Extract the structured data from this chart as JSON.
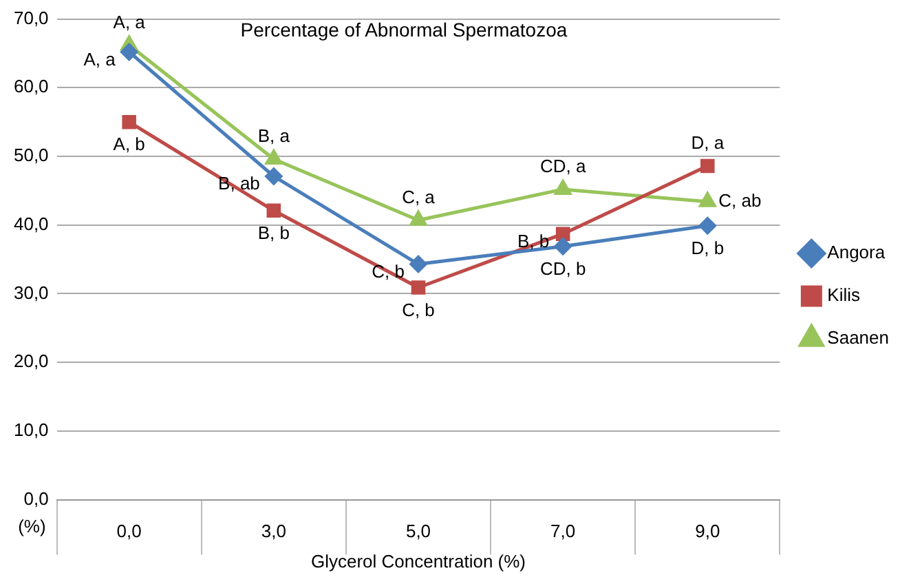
{
  "chart_data": {
    "type": "line",
    "title": "Percentage of Abnormal Spermatozoa",
    "xlabel": "Glycerol Concentration (%)",
    "ylabel": "(%)",
    "categories": [
      "0,0",
      "3,0",
      "5,0",
      "7,0",
      "9,0"
    ],
    "series": [
      {
        "name": "Angora",
        "color": "#4a7ebb",
        "marker": "diamond",
        "values": [
          65.2,
          47.1,
          34.3,
          36.9,
          39.9
        ]
      },
      {
        "name": "Kilis",
        "color": "#be4b48",
        "marker": "square",
        "values": [
          55.0,
          42.1,
          30.9,
          38.7,
          48.6
        ]
      },
      {
        "name": "Saanen",
        "color": "#98c45a",
        "marker": "triangle",
        "values": [
          66.2,
          49.6,
          40.7,
          45.2,
          43.4
        ]
      }
    ],
    "ylim": [
      0,
      70
    ],
    "yticks": [
      {
        "value": 0,
        "label": "0,0"
      },
      {
        "value": 10,
        "label": "10,0"
      },
      {
        "value": 20,
        "label": "20,0"
      },
      {
        "value": 30,
        "label": "30,0"
      },
      {
        "value": 40,
        "label": "40,0"
      },
      {
        "value": 50,
        "label": "50,0"
      },
      {
        "value": 60,
        "label": "60,0"
      },
      {
        "value": 70,
        "label": "70,0"
      }
    ],
    "grid": "y",
    "legend": "right",
    "line_style": "solid",
    "annotations": [
      {
        "text": "A, a",
        "x": "0,0",
        "y": 65.2
      },
      {
        "text": "B, ab",
        "x": "3,0",
        "y": 47.1
      },
      {
        "text": "C, b",
        "x": "5,0",
        "y": 34.3
      },
      {
        "text": "CD, b",
        "x": "7,0",
        "y": 36.9
      },
      {
        "text": "D, b",
        "x": "9,0",
        "y": 39.9
      },
      {
        "text": "A, b",
        "x": "0,0",
        "y": 55.0
      },
      {
        "text": "B, b",
        "x": "3,0",
        "y": 42.1
      },
      {
        "text": "C, b",
        "x": "5,0",
        "y": 30.9
      },
      {
        "text": "B, b",
        "x": "7,0",
        "y": 38.7
      },
      {
        "text": "D, a",
        "x": "9,0",
        "y": 48.6
      },
      {
        "text": "A, a",
        "x": "0,0",
        "y": 66.2
      },
      {
        "text": "B, a",
        "x": "3,0",
        "y": 49.6
      },
      {
        "text": "C, a",
        "x": "5,0",
        "y": 40.7
      },
      {
        "text": "CD, a",
        "x": "7,0",
        "y": 45.2
      },
      {
        "text": "C, ab",
        "x": "9,0",
        "y": 43.4
      }
    ]
  }
}
